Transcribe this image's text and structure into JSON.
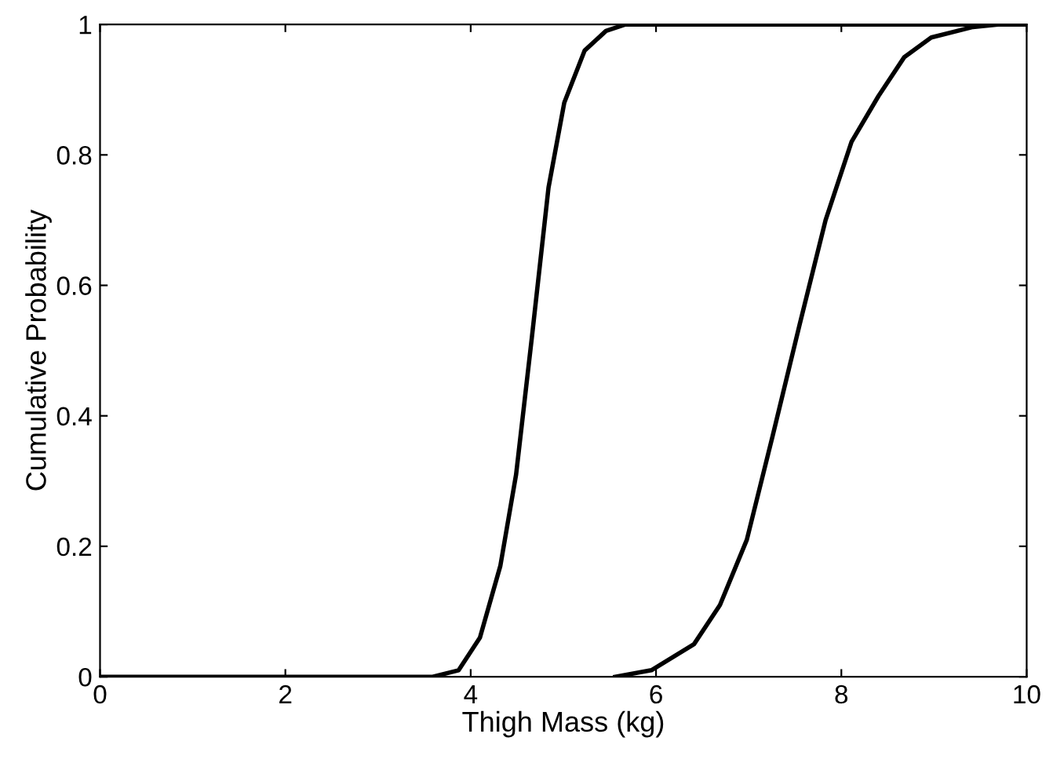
{
  "chart_data": {
    "type": "line",
    "xlabel": "Thigh Mass (kg)",
    "ylabel": "Cumulative Probability",
    "xlim": [
      0,
      10
    ],
    "ylim": [
      0,
      1
    ],
    "xticks": [
      0,
      2,
      4,
      6,
      8,
      10
    ],
    "yticks": [
      0,
      0.2,
      0.4,
      0.6,
      0.8,
      1
    ],
    "grid": false,
    "marker": "none",
    "line_style": "solid",
    "series": [
      {
        "color": "#000000",
        "x": [
          0,
          3.59,
          3.87,
          4.1,
          4.32,
          4.49,
          4.66,
          4.84,
          5.01,
          5.23,
          5.46,
          5.67,
          10
        ],
        "values": [
          0,
          0,
          0.01,
          0.06,
          0.17,
          0.31,
          0.52,
          0.75,
          0.88,
          0.96,
          0.99,
          1,
          1
        ]
      },
      {
        "color": "#000000",
        "x": [
          5.56,
          5.95,
          6.41,
          6.69,
          6.98,
          7.26,
          7.55,
          7.83,
          8.11,
          8.4,
          8.68,
          8.97,
          9.42,
          9.7
        ],
        "values": [
          0,
          0.01,
          0.05,
          0.11,
          0.21,
          0.37,
          0.54,
          0.7,
          0.82,
          0.89,
          0.95,
          0.98,
          0.996,
          1
        ]
      }
    ]
  }
}
